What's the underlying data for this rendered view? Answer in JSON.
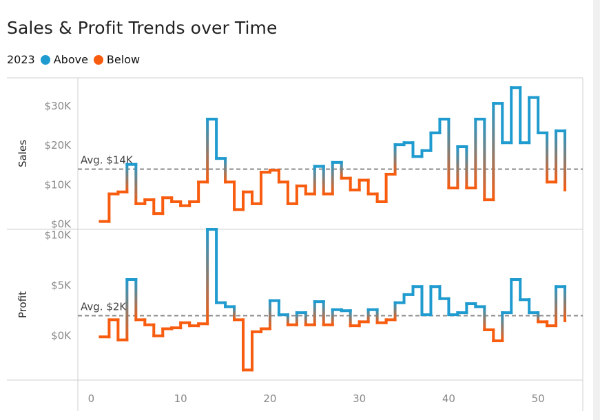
{
  "title": "Sales & Profit Trends over Time",
  "legend": {
    "title": "2023",
    "items": [
      {
        "label": "Above",
        "color": "#1f9bcf"
      },
      {
        "label": "Below",
        "color": "#f85c0f"
      }
    ]
  },
  "chart_data": {
    "type": "line",
    "x": [
      1,
      2,
      3,
      4,
      5,
      6,
      7,
      8,
      9,
      10,
      11,
      12,
      13,
      14,
      15,
      16,
      17,
      18,
      19,
      20,
      21,
      22,
      23,
      24,
      25,
      26,
      27,
      28,
      29,
      30,
      31,
      32,
      33,
      34,
      35,
      36,
      37,
      38,
      39,
      40,
      41,
      42,
      43,
      44,
      45,
      46,
      47,
      48,
      49,
      50,
      51,
      52,
      53
    ],
    "xticks": [
      0,
      10,
      20,
      30,
      40,
      50
    ],
    "xlim": [
      -1.5,
      55
    ],
    "line_style": "step",
    "panes": [
      {
        "ylabel": "Sales",
        "ylim": [
          -1500,
          37000
        ],
        "yticks": [
          0,
          10000,
          20000,
          30000
        ],
        "ytick_labels": [
          "$0K",
          "$10K",
          "$20K",
          "$30K"
        ],
        "avg_value": 13800,
        "avg_label": "Avg. $14K",
        "values": [
          500,
          7500,
          8000,
          15000,
          5000,
          6000,
          2500,
          6500,
          5500,
          4500,
          5500,
          10500,
          26500,
          16500,
          10500,
          3500,
          8000,
          5000,
          13000,
          13500,
          10500,
          5000,
          9500,
          7500,
          14500,
          7500,
          15500,
          11500,
          8500,
          11000,
          7500,
          5500,
          12500,
          20000,
          20500,
          17000,
          18500,
          23000,
          26500,
          9000,
          19500,
          9000,
          26500,
          6000,
          30500,
          20500,
          34500,
          20500,
          32000,
          23000,
          10500,
          23500,
          8500
        ]
      },
      {
        "ylabel": "Profit",
        "ylim": [
          -4500,
          10500
        ],
        "yticks": [
          0,
          5000,
          10000
        ],
        "ytick_labels": [
          "$0K",
          "$5K",
          "$10K"
        ],
        "avg_value": 1900,
        "avg_label": "Avg. $2K",
        "values": [
          -200,
          1500,
          -500,
          5500,
          1500,
          1000,
          -100,
          600,
          700,
          1200,
          900,
          1100,
          10500,
          3200,
          2800,
          1500,
          -3500,
          300,
          600,
          3400,
          2000,
          1000,
          2200,
          1000,
          3300,
          1000,
          2500,
          2400,
          900,
          1300,
          2500,
          1200,
          1500,
          3200,
          4000,
          4800,
          2000,
          4800,
          3600,
          2000,
          2200,
          3100,
          2800,
          500,
          -600,
          2200,
          5500,
          3500,
          2200,
          1300,
          900,
          4800,
          1400
        ]
      }
    ]
  }
}
